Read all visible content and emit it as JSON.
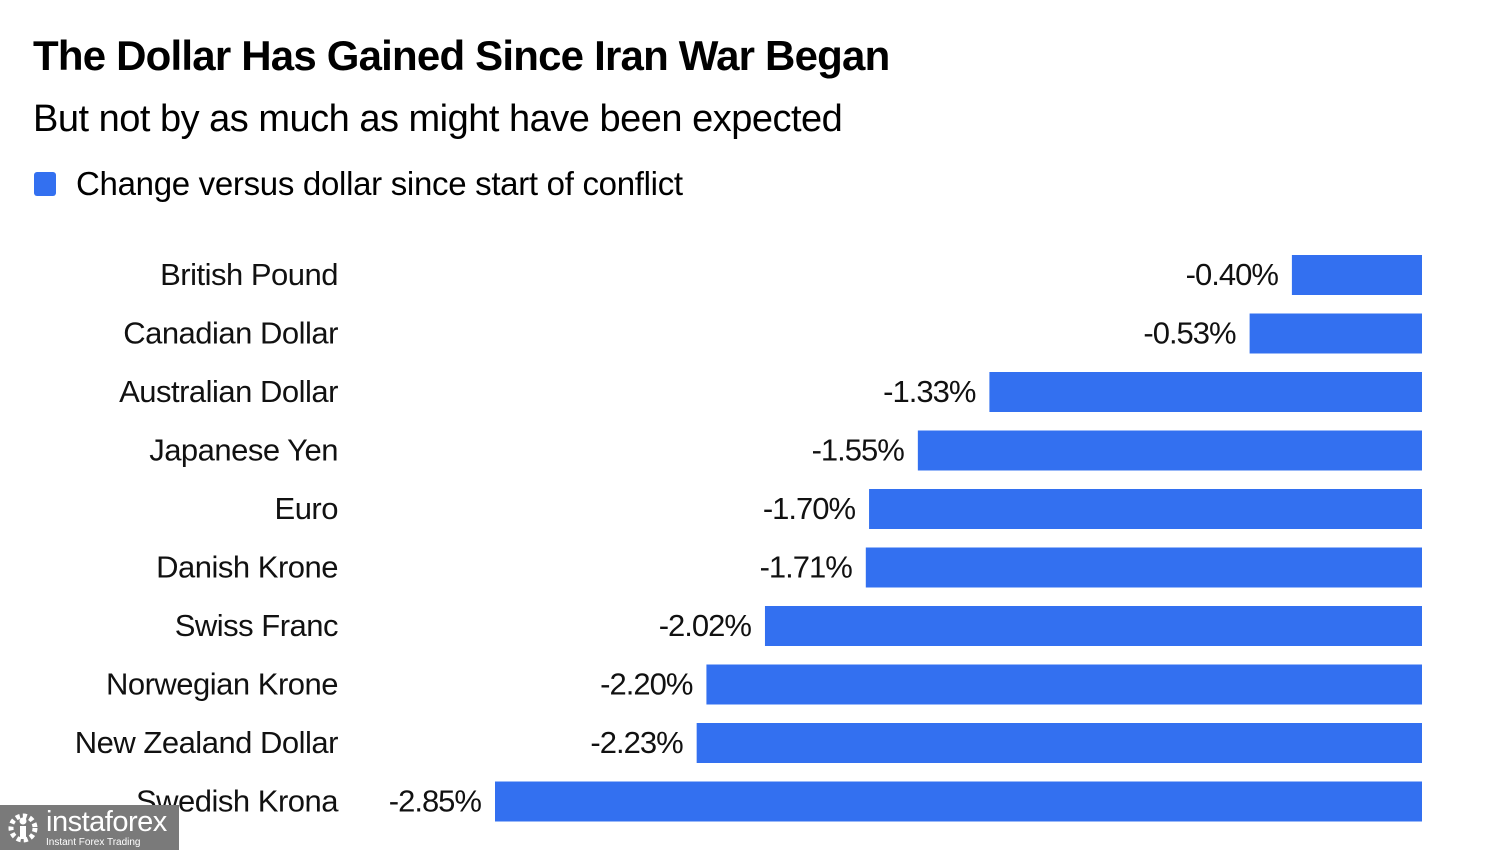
{
  "header": {
    "title": "The Dollar Has Gained Since Iran War Began",
    "subtitle": "But not by as much as might have been expected"
  },
  "legend": {
    "label": "Change versus dollar since start of conflict",
    "color": "#3370f0"
  },
  "watermark": {
    "icon": "gear-person-icon",
    "brand": "instaforex",
    "tagline": "Instant Forex Trading"
  },
  "chart_data": {
    "type": "bar",
    "orientation": "horizontal",
    "title": "The Dollar Has Gained Since Iran War Began",
    "subtitle": "But not by as much as might have been expected",
    "xlabel": "",
    "ylabel": "",
    "unit": "%",
    "grid": false,
    "legend_position": "top-left",
    "categories": [
      "British Pound",
      "Canadian Dollar",
      "Australian Dollar",
      "Japanese Yen",
      "Euro",
      "Danish Krone",
      "Swiss Franc",
      "Norwegian Krone",
      "New Zealand Dollar",
      "Swedish Krona"
    ],
    "series": [
      {
        "name": "Change versus dollar since start of conflict",
        "color": "#3370f0",
        "values": [
          -0.4,
          -0.53,
          -1.33,
          -1.55,
          -1.7,
          -1.71,
          -2.02,
          -2.2,
          -2.23,
          -2.85
        ],
        "labels": [
          "-0.40%",
          "-0.53%",
          "-1.33%",
          "-1.55%",
          "-1.70%",
          "-1.71%",
          "-2.02%",
          "-2.20%",
          "-2.23%",
          "-2.85%"
        ]
      }
    ],
    "xlim": [
      -2.85,
      0
    ]
  }
}
